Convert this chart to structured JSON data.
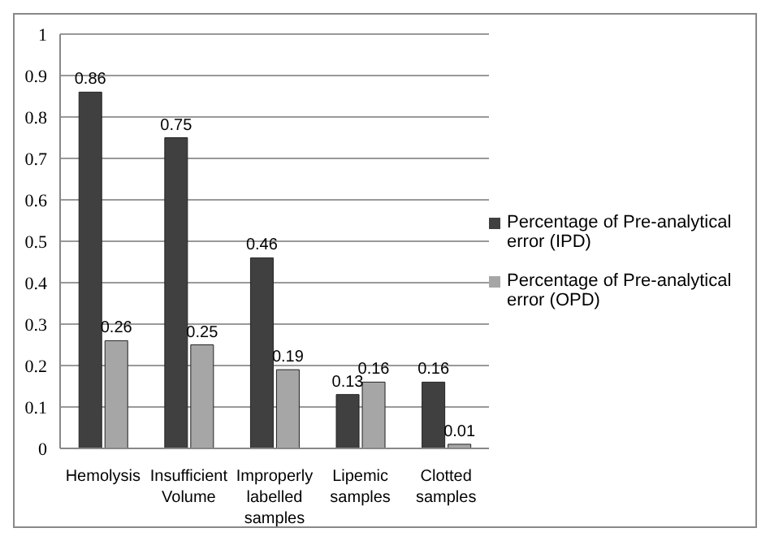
{
  "chart_data": {
    "type": "bar",
    "categories": [
      "Hemolysis",
      "Insufficient Volume",
      "Improperly labelled samples",
      "Lipemic samples",
      "Clotted samples"
    ],
    "series": [
      {
        "name": "Percentage of Pre-analytical error (IPD)",
        "color": "#404040",
        "values": [
          0.86,
          0.75,
          0.46,
          0.13,
          0.16
        ]
      },
      {
        "name": "Percentage of Pre-analytical error (OPD)",
        "color": "#a6a6a6",
        "values": [
          0.26,
          0.25,
          0.19,
          0.16,
          0.01
        ]
      }
    ],
    "ylim": [
      0,
      1
    ],
    "yticks": [
      0,
      0.1,
      0.2,
      0.3,
      0.4,
      0.5,
      0.6,
      0.7,
      0.8,
      0.9,
      1
    ],
    "grid": "y",
    "legend": "right",
    "data_labels": true
  }
}
